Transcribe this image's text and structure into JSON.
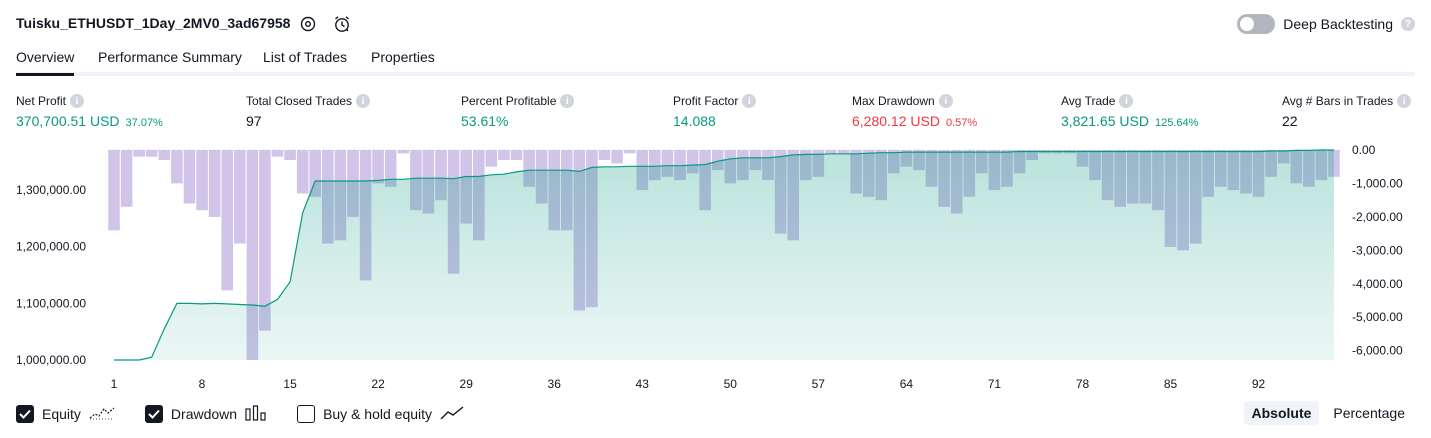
{
  "header": {
    "title": "Tuisku_ETHUSDT_1Day_2MV0_3ad67958",
    "deep_backtesting_label": "Deep Backtesting",
    "help_glyph": "?"
  },
  "tabs": [
    {
      "label": "Overview",
      "active": true
    },
    {
      "label": "Performance Summary",
      "active": false
    },
    {
      "label": "List of Trades",
      "active": false
    },
    {
      "label": "Properties",
      "active": false
    }
  ],
  "stats": [
    {
      "label": "Net Profit",
      "value": "370,700.51 USD",
      "sub": "37.07%",
      "color": "green"
    },
    {
      "label": "Total Closed Trades",
      "value": "97",
      "sub": "",
      "color": "dark"
    },
    {
      "label": "Percent Profitable",
      "value": "53.61%",
      "sub": "",
      "color": "green"
    },
    {
      "label": "Profit Factor",
      "value": "14.088",
      "sub": "",
      "color": "green"
    },
    {
      "label": "Max Drawdown",
      "value": "6,280.12 USD",
      "sub": "0.57%",
      "color": "red"
    },
    {
      "label": "Avg Trade",
      "value": "3,821.65 USD",
      "sub": "125.64%",
      "color": "green"
    },
    {
      "label": "Avg # Bars in Trades",
      "value": "22",
      "sub": "",
      "color": "dark"
    }
  ],
  "chart_data": {
    "type": "line",
    "x_ticks": [
      "1",
      "8",
      "15",
      "22",
      "29",
      "36",
      "43",
      "50",
      "57",
      "64",
      "71",
      "78",
      "85",
      "92"
    ],
    "left_axis": {
      "ticks": [
        "1,300,000.00",
        "1,200,000.00",
        "1,100,000.00",
        "1,000,000.00"
      ],
      "range": [
        1000000,
        1370700
      ]
    },
    "right_axis": {
      "ticks": [
        "0.00",
        "-1,000.00",
        "-2,000.00",
        "-3,000.00",
        "-4,000.00",
        "-5,000.00",
        "-6,000.00"
      ],
      "range": [
        -6280,
        0
      ]
    },
    "series": [
      {
        "name": "Equity",
        "type": "area",
        "color": "#089981",
        "x": [
          1,
          2,
          3,
          4,
          5,
          6,
          7,
          8,
          9,
          10,
          11,
          12,
          13,
          14,
          15,
          16,
          17,
          18,
          19,
          20,
          21,
          22,
          23,
          24,
          25,
          26,
          27,
          28,
          29,
          30,
          31,
          32,
          33,
          34,
          35,
          36,
          37,
          38,
          39,
          40,
          41,
          42,
          43,
          44,
          45,
          46,
          47,
          48,
          49,
          50,
          51,
          52,
          53,
          54,
          55,
          56,
          57,
          58,
          59,
          60,
          61,
          62,
          63,
          64,
          65,
          66,
          67,
          68,
          69,
          70,
          71,
          72,
          73,
          74,
          75,
          76,
          77,
          78,
          79,
          80,
          81,
          82,
          83,
          84,
          85,
          86,
          87,
          88,
          89,
          90,
          91,
          92,
          93,
          94,
          95,
          96,
          97,
          98
        ],
        "values": [
          1000000,
          1000000,
          1000000,
          1005000,
          1055000,
          1100000,
          1100000,
          1099000,
          1100000,
          1099000,
          1098000,
          1097000,
          1095000,
          1107000,
          1138000,
          1260000,
          1316000,
          1316000,
          1316000,
          1316000,
          1316000,
          1317000,
          1319000,
          1319000,
          1321000,
          1321000,
          1321000,
          1320000,
          1324000,
          1324000,
          1327000,
          1328000,
          1332000,
          1335000,
          1335000,
          1335000,
          1335000,
          1333000,
          1340000,
          1341000,
          1341000,
          1342000,
          1342000,
          1342000,
          1343000,
          1343000,
          1344000,
          1345000,
          1351000,
          1355000,
          1357000,
          1357000,
          1357000,
          1359000,
          1362000,
          1363000,
          1363000,
          1364000,
          1364000,
          1364000,
          1365000,
          1366000,
          1366000,
          1367000,
          1367000,
          1367000,
          1367000,
          1367000,
          1367000,
          1367000,
          1367000,
          1367000,
          1368000,
          1368000,
          1368000,
          1368000,
          1368000,
          1368000,
          1368000,
          1368000,
          1368000,
          1368000,
          1368000,
          1368000,
          1368000,
          1368000,
          1368000,
          1368000,
          1368000,
          1368000,
          1368000,
          1368000,
          1369000,
          1369000,
          1370000,
          1370000,
          1370700,
          1370700
        ]
      },
      {
        "name": "Drawdown",
        "type": "bar",
        "color": "#b39ddb",
        "x": [
          1,
          2,
          3,
          4,
          5,
          6,
          7,
          8,
          9,
          10,
          11,
          12,
          13,
          14,
          15,
          16,
          17,
          18,
          19,
          20,
          21,
          22,
          23,
          24,
          25,
          26,
          27,
          28,
          29,
          30,
          31,
          32,
          33,
          34,
          35,
          36,
          37,
          38,
          39,
          40,
          41,
          42,
          43,
          44,
          45,
          46,
          47,
          48,
          49,
          50,
          51,
          52,
          53,
          54,
          55,
          56,
          57,
          58,
          59,
          60,
          61,
          62,
          63,
          64,
          65,
          66,
          67,
          68,
          69,
          70,
          71,
          72,
          73,
          74,
          75,
          76,
          77,
          78,
          79,
          80,
          81,
          82,
          83,
          84,
          85,
          86,
          87,
          88,
          89,
          90,
          91,
          92,
          93,
          94,
          95,
          96,
          97,
          98
        ],
        "values": [
          -2400,
          -1700,
          -200,
          -200,
          -300,
          -1000,
          -1600,
          -1800,
          -2000,
          -4200,
          -2800,
          -6280,
          -5400,
          -200,
          -300,
          -1300,
          -1400,
          -2800,
          -2700,
          -2000,
          -3900,
          -1000,
          -1100,
          -100,
          -1800,
          -1900,
          -1500,
          -3700,
          -2200,
          -2700,
          -500,
          -300,
          -300,
          -1100,
          -1600,
          -2400,
          -2400,
          -4800,
          -4700,
          -300,
          -400,
          -100,
          -1200,
          -900,
          -800,
          -900,
          -700,
          -1800,
          -600,
          -1000,
          -900,
          -600,
          -900,
          -2500,
          -2700,
          -900,
          -800,
          -100,
          -100,
          -1300,
          -1400,
          -1500,
          -700,
          -500,
          -600,
          -1100,
          -1700,
          -1900,
          -1400,
          -700,
          -1200,
          -1100,
          -700,
          -300,
          -100,
          -100,
          -100,
          -500,
          -900,
          -1500,
          -1700,
          -1600,
          -1600,
          -1800,
          -2900,
          -3000,
          -2800,
          -1400,
          -1100,
          -1200,
          -1300,
          -1400,
          -800,
          -400,
          -1000,
          -1100,
          -900,
          -800
        ]
      }
    ]
  },
  "legend": {
    "items": [
      {
        "label": "Equity",
        "checked": true
      },
      {
        "label": "Drawdown",
        "checked": true
      },
      {
        "label": "Buy & hold equity",
        "checked": false
      }
    ]
  },
  "scale_toggle": {
    "absolute_label": "Absolute",
    "percentage_label": "Percentage",
    "active": "Absolute"
  }
}
